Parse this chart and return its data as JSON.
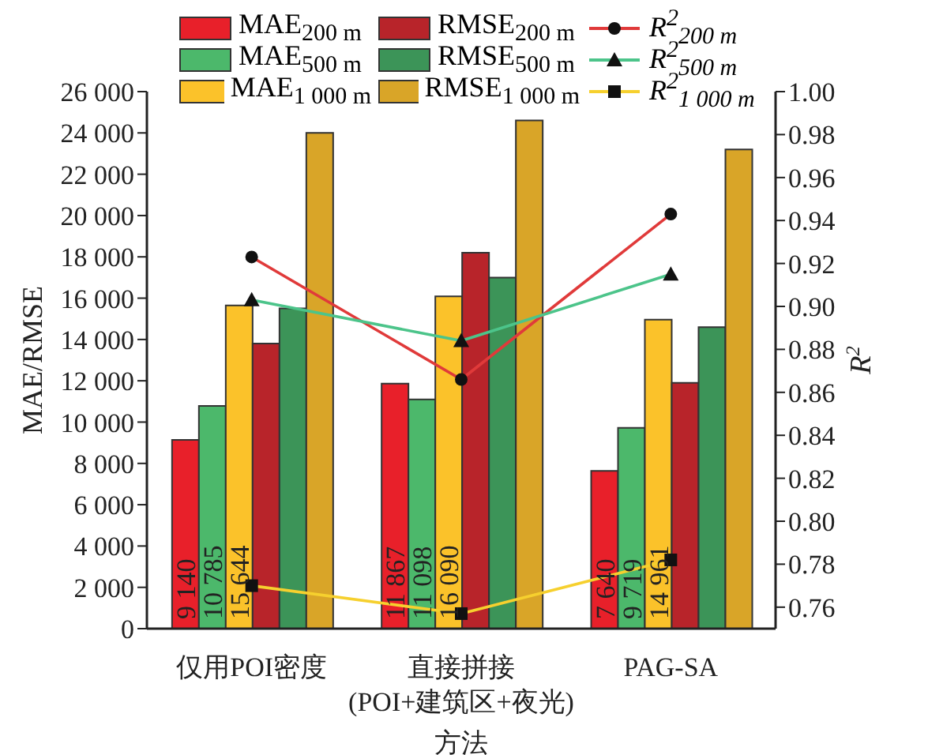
{
  "chart_data": {
    "type": "bar",
    "categories": [
      "仅用POI密度",
      "直接拼接\n(POI+建筑区+夜光)",
      "PAG-SA"
    ],
    "xlabel": "方法",
    "ylabel": "MAE/RMSE",
    "y2label": "R$^{2}$",
    "ylim": [
      0,
      26000
    ],
    "yticks": [
      0,
      {
        "value": 2000,
        "label": "2 000"
      },
      {
        "value": 4000,
        "label": "4 000"
      },
      {
        "value": 6000,
        "label": "6 000"
      },
      {
        "value": 8000,
        "label": "8 000"
      },
      {
        "value": 10000,
        "label": "10 000"
      },
      {
        "value": 12000,
        "label": "12 000"
      },
      {
        "value": 14000,
        "label": "14 000"
      },
      {
        "value": 16000,
        "label": "16 000"
      },
      {
        "value": 18000,
        "label": "18 000"
      },
      {
        "value": 20000,
        "label": "20 000"
      },
      {
        "value": 22000,
        "label": "22 000"
      },
      {
        "value": 24000,
        "label": "24 000"
      },
      {
        "value": 26000,
        "label": "26 000"
      }
    ],
    "y2lim": [
      0.75,
      1.0
    ],
    "y2ticks": [
      {
        "value": 0.76,
        "label": "0.76"
      },
      {
        "value": 0.78,
        "label": "0.78"
      },
      {
        "value": 0.8,
        "label": "0.80"
      },
      {
        "value": 0.82,
        "label": "0.82"
      },
      {
        "value": 0.84,
        "label": "0.84"
      },
      {
        "value": 0.86,
        "label": "0.86"
      },
      {
        "value": 0.88,
        "label": "0.88"
      },
      {
        "value": 0.9,
        "label": "0.90"
      },
      {
        "value": 0.92,
        "label": "0.92"
      },
      {
        "value": 0.94,
        "label": "0.94"
      },
      {
        "value": 0.96,
        "label": "0.96"
      },
      {
        "value": 0.98,
        "label": "0.98"
      },
      {
        "value": 1.0,
        "label": "1.00"
      }
    ],
    "legend": "top",
    "grid": false,
    "series": [
      {
        "name": "MAE$_{200 m}$",
        "color": "#e8202a",
        "values": [
          9140,
          11867,
          7640
        ],
        "value_labels": [
          "9 140",
          "11 867",
          "7 640"
        ]
      },
      {
        "name": "MAE$_{500 m}$",
        "color": "#4cb86b",
        "values": [
          10785,
          11098,
          9719
        ],
        "value_labels": [
          "10 785",
          "11 098",
          "9 719"
        ]
      },
      {
        "name": "MAE$_{1 000 m}$",
        "color": "#fbc22a",
        "values": [
          15644,
          16090,
          14961
        ],
        "value_labels": [
          "15 644",
          "16 090",
          "14 961"
        ]
      },
      {
        "name": "RMSE$_{200 m}$",
        "color": "#b8242a",
        "values": [
          13800,
          18200,
          11900
        ]
      },
      {
        "name": "RMSE$_{500 m}$",
        "color": "#3c9458",
        "values": [
          15500,
          17000,
          14600
        ]
      },
      {
        "name": "RMSE$_{1 000 m}$",
        "color": "#d9a528",
        "values": [
          24000,
          24600,
          23200
        ]
      },
      {
        "name": "R$^{2}$$_{200 m}$",
        "type": "line",
        "axis": "y2",
        "marker": "circle",
        "color": "#e03a3a",
        "values": [
          0.923,
          0.866,
          0.943
        ]
      },
      {
        "name": "R$^{2}$$_{500 m}$",
        "type": "line",
        "axis": "y2",
        "marker": "triangle",
        "color": "#4cc48a",
        "values": [
          0.903,
          0.884,
          0.915
        ]
      },
      {
        "name": "R$^{2}$$_{1 000 m}$",
        "type": "line",
        "axis": "y2",
        "marker": "square",
        "color": "#f6d02e",
        "values": [
          0.77,
          0.757,
          0.782
        ]
      }
    ]
  }
}
